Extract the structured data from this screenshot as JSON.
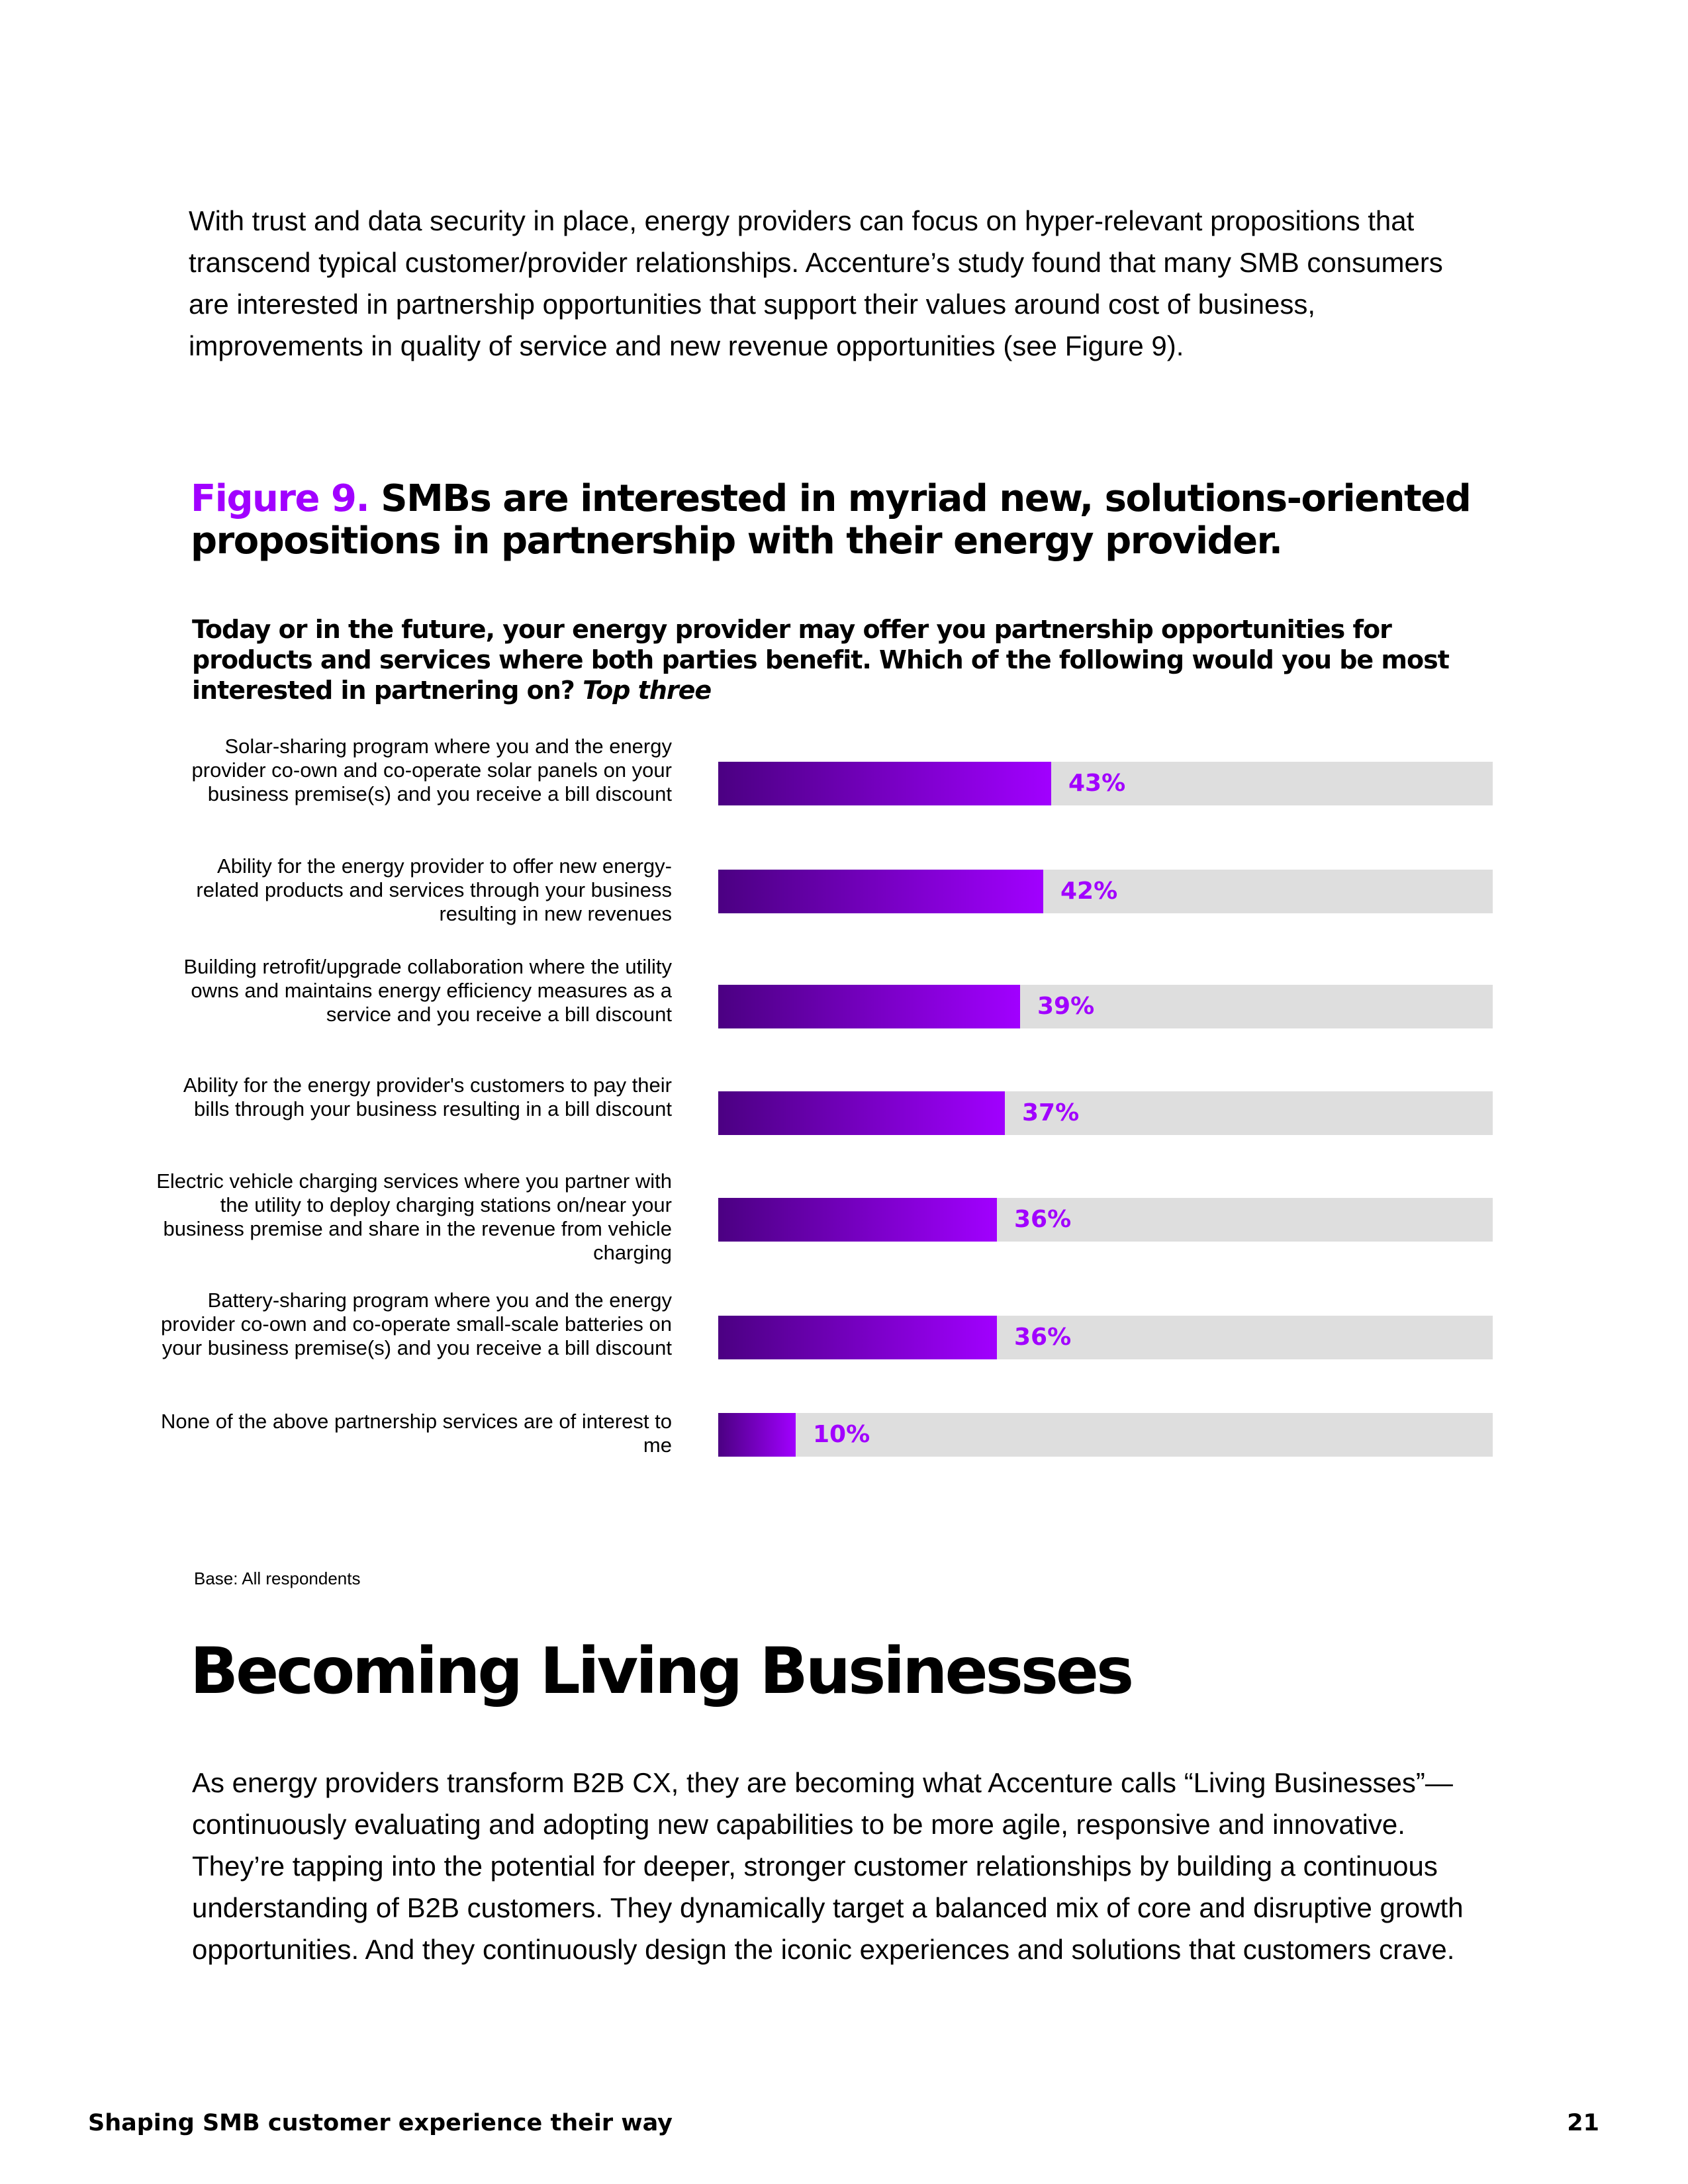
{
  "intro_text": "With trust and data security in place, energy providers can focus on hyper-relevant propositions that transcend typical customer/provider relationships. Accenture’s study found that many SMB consumers are interested in partnership opportunities that support their values around cost of business, improvements in quality of service and new revenue opportunities (see Figure 9).",
  "figure": {
    "label": "Figure 9.",
    "title": "SMBs are interested in myriad new, solutions-oriented propositions in partnership with their energy provider.",
    "question": "Today or in the future, your energy provider may offer you partnership opportunities for products and services where both parties benefit. Which of the following would you be most interested in partnering on?",
    "question_qualifier": "Top three",
    "base_note": "Base: All respondents"
  },
  "chart_data": {
    "type": "bar",
    "orientation": "horizontal",
    "ylim": [
      0,
      100
    ],
    "unit": "%",
    "colors": {
      "fill_start": "#4b0082",
      "fill_end": "#a100ff",
      "track": "#dedede",
      "value_label": "#a100ff"
    },
    "categories": [
      "Solar-sharing program where you and the energy provider co-own and co-operate solar panels on your business premise(s) and you receive a bill discount",
      "Ability for the energy provider to offer new energy-related products and services through your business resulting in new revenues",
      "Building retrofit/upgrade collaboration where the utility owns and maintains energy efficiency measures as a service and you receive a bill discount",
      "Ability for the energy provider's customers to pay their bills through your business resulting in a bill discount",
      "Electric vehicle charging services where you partner with the utility to deploy charging stations on/near your business premise and share in the revenue from vehicle charging",
      "Battery-sharing program where you and the energy provider co-own and co-operate small-scale batteries on your business premise(s) and you receive a bill discount",
      "None of the above partnership services are of interest to me"
    ],
    "values": [
      43,
      42,
      39,
      37,
      36,
      36,
      10
    ],
    "value_labels": [
      "43%",
      "42%",
      "39%",
      "37%",
      "36%",
      "36%",
      "10%"
    ]
  },
  "section": {
    "heading": "Becoming Living Businesses",
    "body": "As energy providers transform B2B CX, they are becoming what Accenture calls “Living Businesses”—continuously evaluating and adopting new capabilities to be more agile, responsive and innovative. They’re tapping into the potential for deeper, stronger customer relationships by building a continuous understanding of B2B customers. They dynamically target a balanced mix of core and disruptive growth opportunities. And they continuously design the iconic experiences and solutions that customers crave."
  },
  "footer": {
    "title": "Shaping SMB customer experience their way",
    "page_number": "21"
  }
}
